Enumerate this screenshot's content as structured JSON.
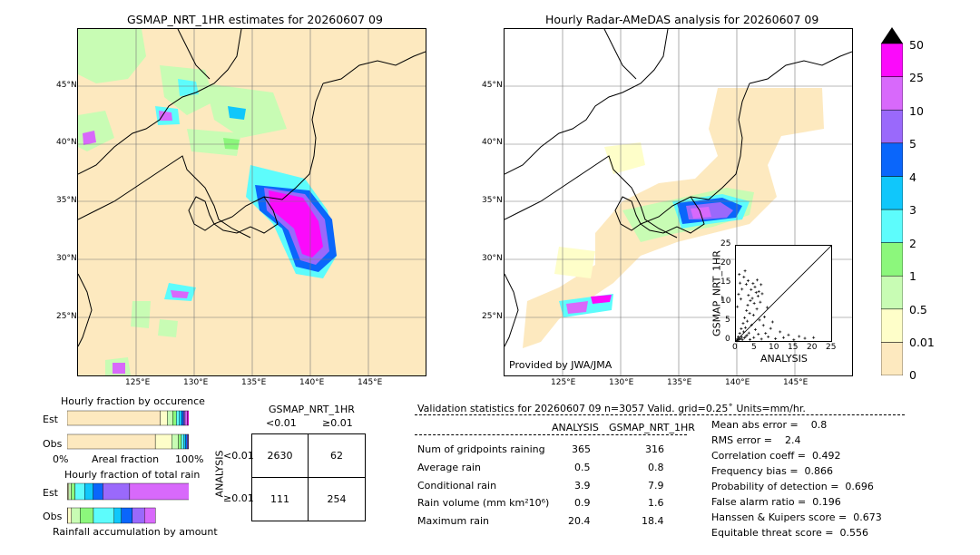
{
  "left_map": {
    "title": "GSMAP_NRT_1HR estimates for 20260607 09",
    "lat_labels": [
      "45°N",
      "40°N",
      "35°N",
      "30°N",
      "25°N"
    ],
    "lon_labels": [
      "125°E",
      "130°E",
      "135°E",
      "140°E",
      "145°E"
    ]
  },
  "right_map": {
    "title": "Hourly Radar-AMeDAS analysis for 20260607 09",
    "lat_labels": [
      "45°N",
      "40°N",
      "35°N",
      "30°N",
      "25°N"
    ],
    "lon_labels": [
      "125°E",
      "130°E",
      "135°E",
      "140°E",
      "145°E"
    ],
    "credit": "Provided by JWA/JMA"
  },
  "colorbar": {
    "levels": [
      "0",
      "0.01",
      "0.5",
      "1",
      "2",
      "3",
      "4",
      "5",
      "10",
      "25",
      "50"
    ],
    "colors": [
      "#fde9bf",
      "#fefec9",
      "#c8fcb4",
      "#8cf77c",
      "#5dfcfc",
      "#10c7fb",
      "#0a66fb",
      "#9a69fb",
      "#d869fb",
      "#fb0afb",
      "#cc9a3c"
    ]
  },
  "chart_data": [
    {
      "type": "scatter",
      "xlabel": "ANALYSIS",
      "ylabel": "GSMAP_NRT_1HR",
      "xlim": [
        0,
        25
      ],
      "ylim": [
        0,
        25
      ],
      "x_ticks": [
        "0",
        "5",
        "10",
        "15",
        "20",
        "25"
      ],
      "y_ticks": [
        "0",
        "5",
        "10",
        "15",
        "20",
        "25"
      ],
      "diagonal": true,
      "points": [
        [
          0.2,
          0.1
        ],
        [
          0.3,
          0.5
        ],
        [
          0.5,
          0.2
        ],
        [
          0.6,
          1.1
        ],
        [
          0.8,
          0.4
        ],
        [
          1.0,
          2.0
        ],
        [
          1.2,
          0.6
        ],
        [
          1.4,
          3.2
        ],
        [
          1.5,
          1.0
        ],
        [
          1.7,
          0.3
        ],
        [
          1.9,
          4.6
        ],
        [
          2.0,
          2.4
        ],
        [
          2.2,
          0.8
        ],
        [
          2.3,
          6.1
        ],
        [
          2.5,
          3.5
        ],
        [
          2.6,
          1.2
        ],
        [
          2.8,
          8.0
        ],
        [
          3.0,
          5.2
        ],
        [
          3.1,
          9.4
        ],
        [
          3.3,
          12.0
        ],
        [
          3.4,
          2.1
        ],
        [
          3.6,
          7.3
        ],
        [
          3.8,
          10.6
        ],
        [
          4.0,
          13.5
        ],
        [
          4.1,
          4.2
        ],
        [
          4.3,
          11.2
        ],
        [
          4.5,
          15.1
        ],
        [
          4.6,
          6.8
        ],
        [
          4.8,
          9.9
        ],
        [
          5.0,
          14.2
        ],
        [
          5.1,
          3.0
        ],
        [
          5.3,
          12.7
        ],
        [
          5.5,
          8.4
        ],
        [
          5.6,
          16.0
        ],
        [
          5.8,
          11.8
        ],
        [
          6.0,
          13.0
        ],
        [
          6.2,
          5.5
        ],
        [
          6.4,
          10.2
        ],
        [
          6.6,
          14.8
        ],
        [
          6.9,
          12.4
        ],
        [
          0.4,
          9.0
        ],
        [
          0.7,
          12.3
        ],
        [
          1.1,
          15.2
        ],
        [
          1.6,
          13.6
        ],
        [
          2.1,
          16.8
        ],
        [
          2.7,
          14.9
        ],
        [
          1.3,
          11.0
        ],
        [
          0.9,
          17.5
        ],
        [
          2.4,
          18.4
        ],
        [
          3.2,
          15.8
        ],
        [
          7.2,
          4.1
        ],
        [
          7.8,
          2.0
        ],
        [
          8.5,
          1.1
        ],
        [
          9.1,
          3.3
        ],
        [
          10.4,
          0.6
        ],
        [
          11.6,
          2.4
        ],
        [
          12.5,
          0.9
        ],
        [
          13.8,
          1.6
        ],
        [
          15.2,
          0.3
        ],
        [
          16.6,
          1.2
        ],
        [
          18.1,
          0.7
        ],
        [
          20.4,
          0.9
        ],
        [
          6.7,
          0.5
        ],
        [
          5.9,
          1.8
        ],
        [
          4.7,
          0.9
        ],
        [
          3.7,
          0.4
        ],
        [
          2.9,
          1.5
        ],
        [
          7.5,
          6.3
        ],
        [
          8.2,
          8.8
        ],
        [
          9.6,
          5.0
        ]
      ]
    },
    {
      "type": "bar",
      "title": "Hourly fraction by occurence",
      "categories": [
        "Est",
        "Obs"
      ],
      "xlabel_left": "0%",
      "xlabel_mid": "Areal fraction",
      "xlabel_right": "100%",
      "series": [
        {
          "values": [
            0.765,
            0.725
          ]
        },
        {
          "values": [
            0.058,
            0.135
          ]
        },
        {
          "values": [
            0.045,
            0.055
          ]
        },
        {
          "values": [
            0.03,
            0.025
          ]
        },
        {
          "values": [
            0.025,
            0.02
          ]
        },
        {
          "values": [
            0.02,
            0.015
          ]
        },
        {
          "values": [
            0.015,
            0.012
          ]
        },
        {
          "values": [
            0.012,
            0.008
          ]
        },
        {
          "values": [
            0.018,
            0.005
          ]
        },
        {
          "values": [
            0.012,
            0.0
          ]
        }
      ]
    },
    {
      "type": "bar",
      "title": "Hourly fraction of total rain",
      "categories": [
        "Est",
        "Obs"
      ],
      "xlabel_mid": "Rainfall accumulation by amount",
      "series": [
        {
          "values": [
            0.004,
            0.006
          ]
        },
        {
          "values": [
            0.01,
            0.03
          ]
        },
        {
          "values": [
            0.02,
            0.07
          ]
        },
        {
          "values": [
            0.03,
            0.11
          ]
        },
        {
          "values": [
            0.08,
            0.17
          ]
        },
        {
          "values": [
            0.07,
            0.06
          ]
        },
        {
          "values": [
            0.08,
            0.09
          ]
        },
        {
          "values": [
            0.22,
            0.1
          ]
        },
        {
          "values": [
            0.62,
            0.09
          ]
        },
        {
          "values": [
            0.0,
            0.0
          ]
        }
      ]
    }
  ],
  "contingency": {
    "title": "GSMAP_NRT_1HR",
    "col_lt": "<0.01",
    "col_ge": "≥0.01",
    "row_axis": "ANALYSIS",
    "row_lt": "<0.01",
    "row_ge": "≥0.01",
    "cells": [
      [
        "2630",
        "62"
      ],
      [
        "111",
        "254"
      ]
    ]
  },
  "validation": {
    "header": "Validation statistics for 20260607 09  n=3057 Valid. grid=0.25˚ Units=mm/hr.",
    "col_analysis": "ANALYSIS",
    "col_gsmap": "GSMAP_NRT_1HR",
    "rows": [
      {
        "label": "Num of gridpoints raining",
        "analysis": "365",
        "gsmap": "316"
      },
      {
        "label": "Average rain",
        "analysis": "0.5",
        "gsmap": "0.8"
      },
      {
        "label": "Conditional rain",
        "analysis": "3.9",
        "gsmap": "7.9"
      },
      {
        "label": "Rain volume (mm km²10⁶)",
        "analysis": "0.9",
        "gsmap": "1.6"
      },
      {
        "label": "Maximum rain",
        "analysis": "20.4",
        "gsmap": "18.4"
      }
    ],
    "scores": [
      "Mean abs error =    0.8",
      "RMS error =    2.4",
      "Correlation coeff =  0.492",
      "Frequency bias =  0.866",
      "Probability of detection =  0.696",
      "False alarm ratio =  0.196",
      "Hanssen & Kuipers score =  0.673",
      "Equitable threat score =  0.556"
    ]
  }
}
